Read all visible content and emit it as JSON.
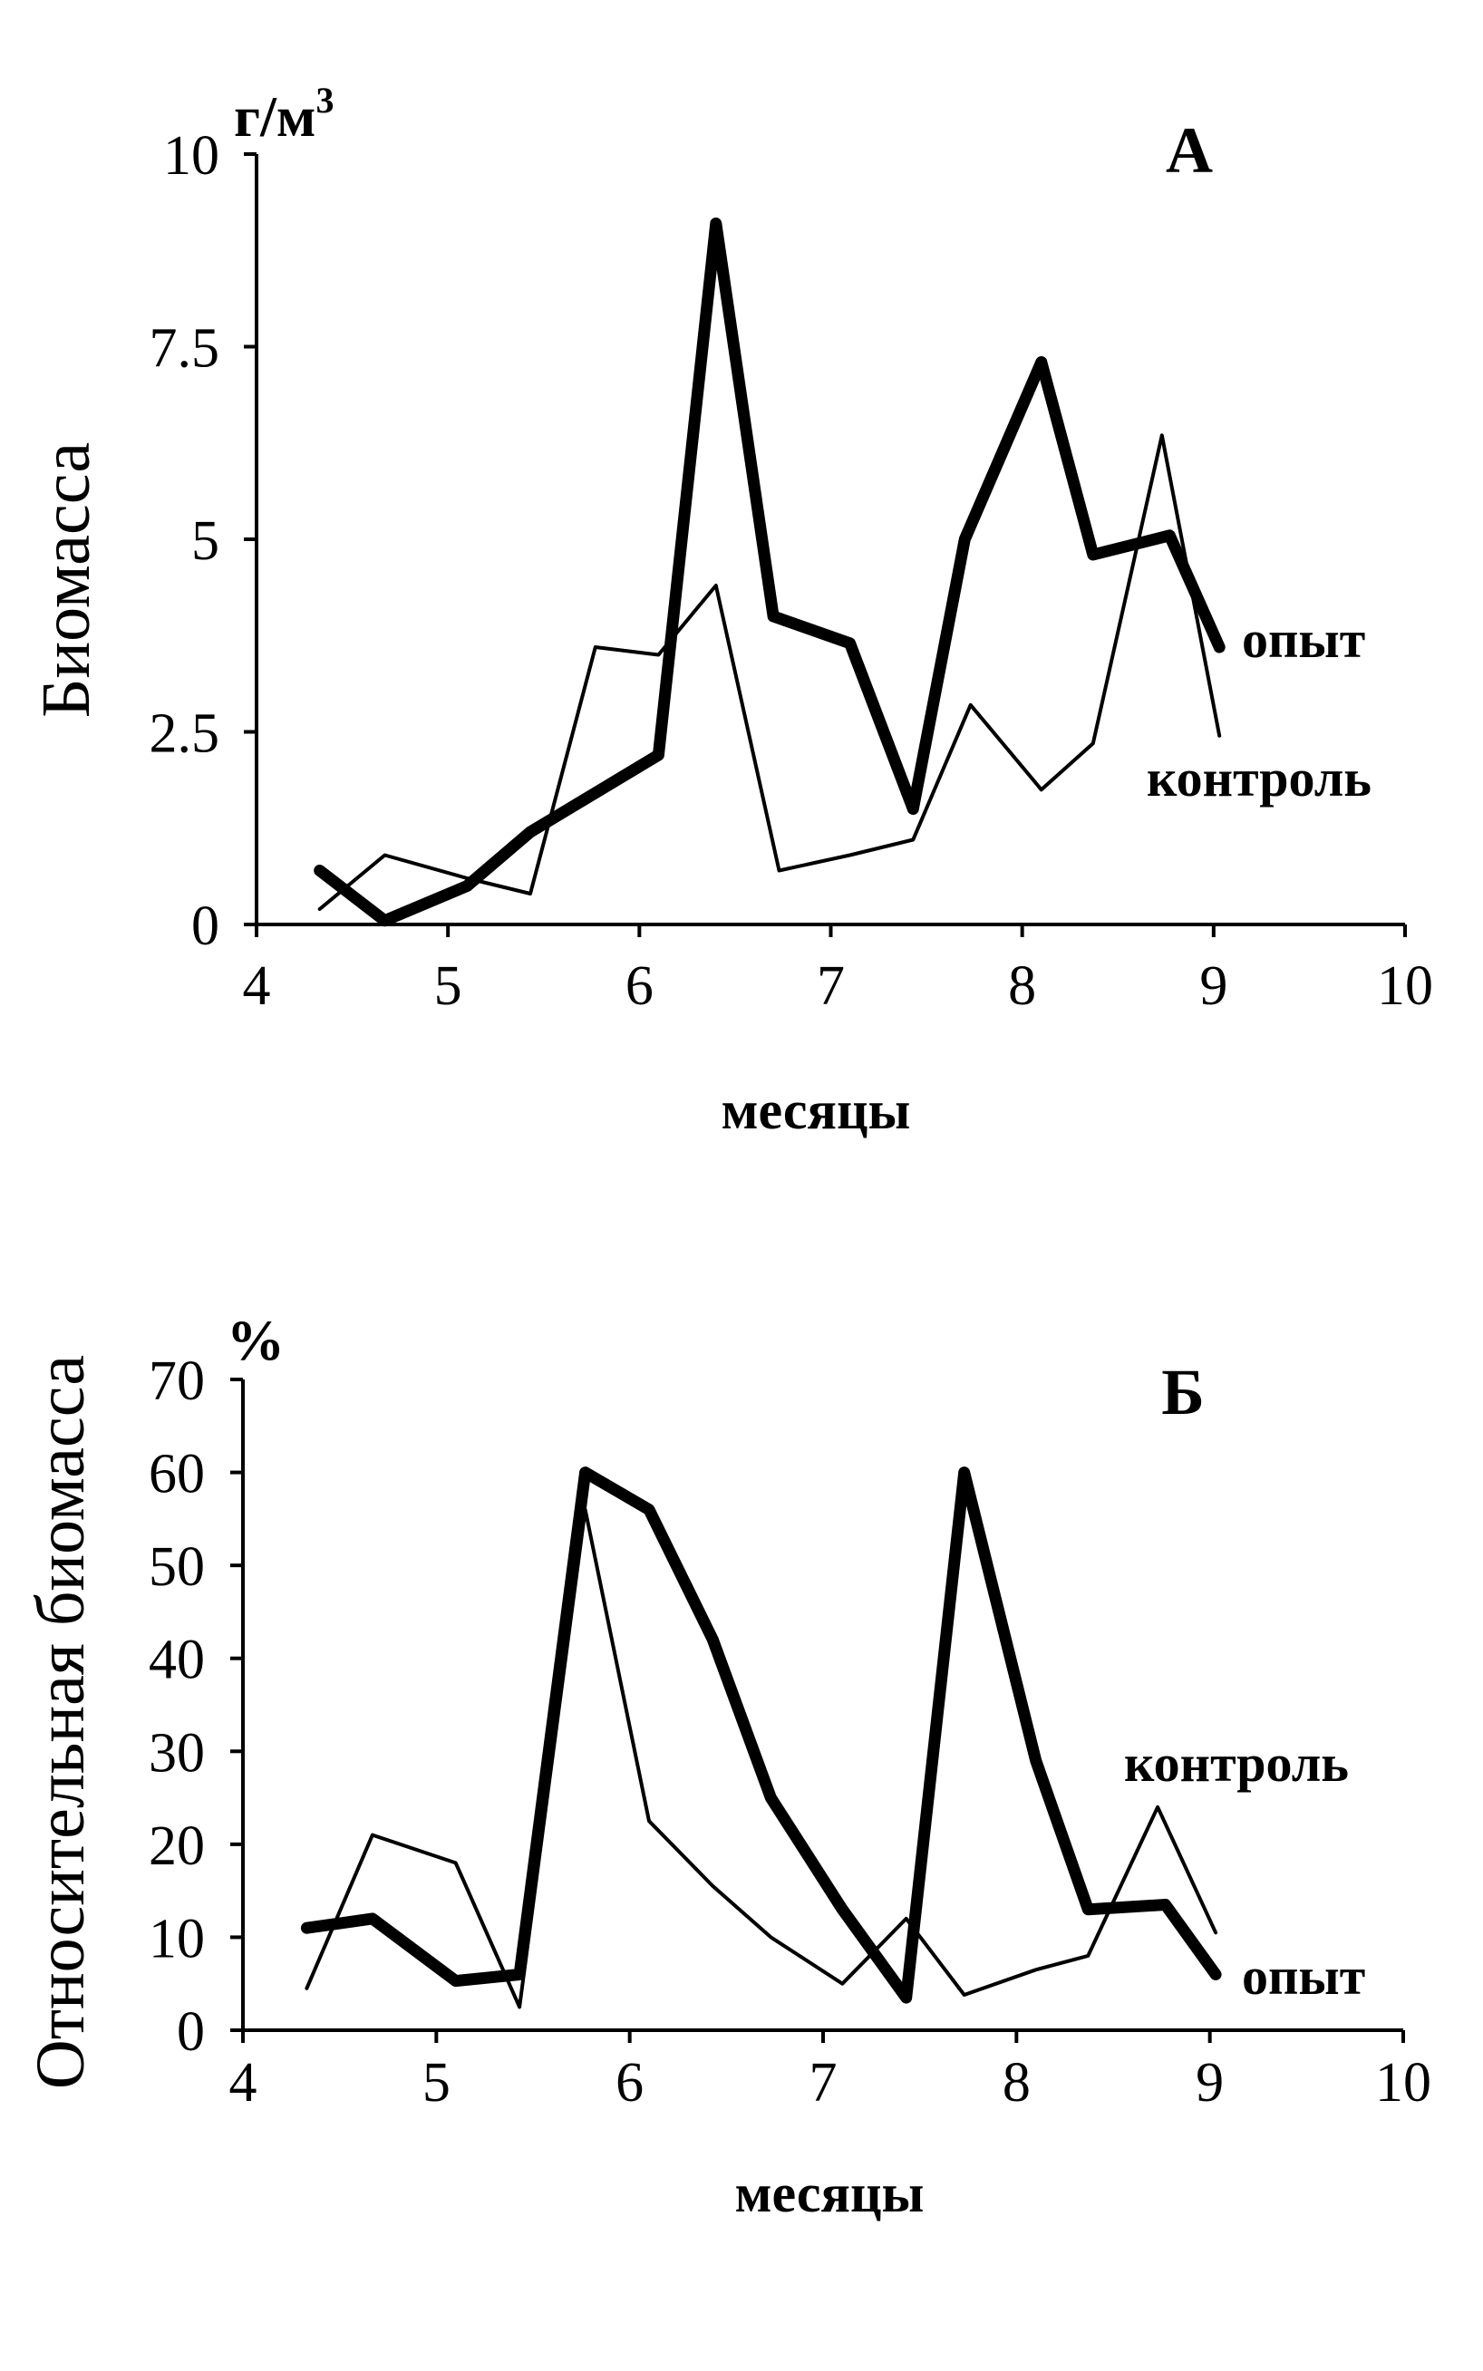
{
  "charts": [
    {
      "id": "A",
      "type": "line",
      "panel_label": "А",
      "unit": "г/м",
      "unit_sup": "3",
      "xlabel": "месяцы",
      "ylabel": "Биомасса",
      "xlim": [
        4,
        10
      ],
      "ylim": [
        0,
        10
      ],
      "xticks": [
        "4",
        "5",
        "6",
        "7",
        "8",
        "9",
        "10"
      ],
      "xtick_values": [
        4,
        5,
        6,
        7,
        8,
        9,
        10
      ],
      "yticks": [
        "0",
        "2.5",
        "5",
        "7.5",
        "10"
      ],
      "ytick_values": [
        0,
        2.5,
        5,
        7.5,
        10
      ],
      "grid": false,
      "series": [
        {
          "name": "опыт",
          "style": "thick",
          "color": "#000000",
          "x": [
            4.33,
            4.67,
            5.1,
            5.43,
            6.1,
            6.4,
            6.7,
            7.1,
            7.43,
            7.7,
            8.1,
            8.37,
            8.77,
            9.03
          ],
          "y": [
            0.7,
            0.05,
            0.5,
            1.2,
            2.2,
            9.1,
            4.0,
            3.65,
            1.5,
            5.0,
            7.3,
            4.8,
            5.05,
            3.6
          ]
        },
        {
          "name": "контроль",
          "style": "thin",
          "color": "#000000",
          "x": [
            4.33,
            4.67,
            5.1,
            5.43,
            5.77,
            6.1,
            6.4,
            6.73,
            7.1,
            7.43,
            7.73,
            8.1,
            8.37,
            8.73,
            9.03
          ],
          "y": [
            0.2,
            0.9,
            0.6,
            0.4,
            3.6,
            3.5,
            4.4,
            0.7,
            0.9,
            1.1,
            2.85,
            1.75,
            2.35,
            6.35,
            2.45
          ]
        }
      ]
    },
    {
      "id": "B",
      "type": "line",
      "panel_label": "Б",
      "unit": "%",
      "xlabel": "месяцы",
      "ylabel": "Относительная биомасса",
      "xlim": [
        4,
        10
      ],
      "ylim": [
        0,
        70
      ],
      "xticks": [
        "4",
        "5",
        "6",
        "7",
        "8",
        "9",
        "10"
      ],
      "xtick_values": [
        4,
        5,
        6,
        7,
        8,
        9,
        10
      ],
      "yticks": [
        "0",
        "10",
        "20",
        "30",
        "40",
        "50",
        "60",
        "70"
      ],
      "ytick_values": [
        0,
        10,
        20,
        30,
        40,
        50,
        60,
        70
      ],
      "grid": false,
      "series": [
        {
          "name": "опыт",
          "style": "thick",
          "color": "#000000",
          "x": [
            4.33,
            4.67,
            5.1,
            5.43,
            5.77,
            6.1,
            6.43,
            6.73,
            7.1,
            7.43,
            7.73,
            8.1,
            8.37,
            8.77,
            9.03
          ],
          "y": [
            11,
            12,
            5.3,
            6,
            60,
            56,
            42,
            25,
            13,
            3.5,
            60,
            29,
            13,
            13.5,
            6
          ]
        },
        {
          "name": "контроль",
          "style": "thin",
          "color": "#000000",
          "x": [
            4.33,
            4.67,
            5.1,
            5.43,
            5.77,
            6.1,
            6.43,
            6.73,
            7.1,
            7.43,
            7.73,
            8.1,
            8.37,
            8.73,
            9.03
          ],
          "y": [
            4.5,
            21,
            18,
            2.5,
            56,
            22.5,
            15.5,
            10,
            5,
            12,
            3.8,
            6.5,
            8,
            24,
            10.5
          ]
        }
      ]
    }
  ]
}
